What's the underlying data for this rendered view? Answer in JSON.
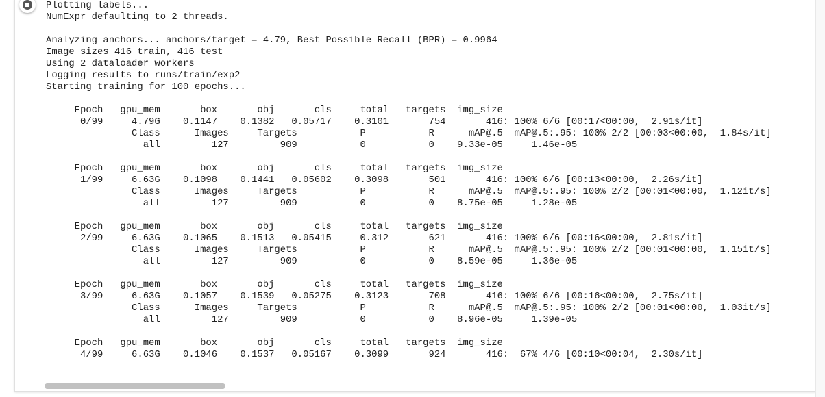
{
  "output": {
    "blocks": [
      [
        "Plotting labels...",
        "NumExpr defaulting to 2 threads."
      ],
      [
        "Analyzing anchors... anchors/target = 4.79, Best Possible Recall (BPR) = 0.9964",
        "Image sizes 416 train, 416 test",
        "Using 2 dataloader workers",
        "Logging results to runs/train/exp2",
        "Starting training for 100 epochs..."
      ],
      [
        "     Epoch   gpu_mem       box       obj       cls     total   targets  img_size",
        "      0/99     4.79G    0.1147    0.1382   0.05717    0.3101       754       416: 100% 6/6 [00:17<00:00,  2.91s/it]",
        "               Class      Images     Targets           P           R      mAP@.5  mAP@.5:.95: 100% 2/2 [00:03<00:00,  1.84s/it]",
        "                 all         127         909           0           0    9.33e-05     1.46e-05"
      ],
      [
        "     Epoch   gpu_mem       box       obj       cls     total   targets  img_size",
        "      1/99     6.63G    0.1098    0.1441   0.05602    0.3098       501       416: 100% 6/6 [00:13<00:00,  2.26s/it]",
        "               Class      Images     Targets           P           R      mAP@.5  mAP@.5:.95: 100% 2/2 [00:01<00:00,  1.12it/s]",
        "                 all         127         909           0           0    8.75e-05     1.28e-05"
      ],
      [
        "     Epoch   gpu_mem       box       obj       cls     total   targets  img_size",
        "      2/99     6.63G    0.1065    0.1513   0.05415     0.312       621       416: 100% 6/6 [00:16<00:00,  2.81s/it]",
        "               Class      Images     Targets           P           R      mAP@.5  mAP@.5:.95: 100% 2/2 [00:01<00:00,  1.15it/s]",
        "                 all         127         909           0           0    8.59e-05     1.36e-05"
      ],
      [
        "     Epoch   gpu_mem       box       obj       cls     total   targets  img_size",
        "      3/99     6.63G    0.1057    0.1539   0.05275    0.3123       708       416: 100% 6/6 [00:16<00:00,  2.75s/it]",
        "               Class      Images     Targets           P           R      mAP@.5  mAP@.5:.95: 100% 2/2 [00:01<00:00,  1.03it/s]",
        "                 all         127         909           0           0    8.96e-05     1.39e-05"
      ],
      [
        "     Epoch   gpu_mem       box       obj       cls     total   targets  img_size",
        "      4/99     6.63G    0.1046    0.1537   0.05167    0.3099       924       416:  67% 4/6 [00:10<00:04,  2.30s/it]"
      ]
    ]
  }
}
